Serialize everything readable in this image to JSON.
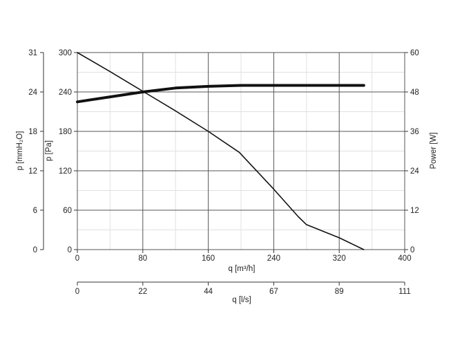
{
  "chart_data": {
    "type": "line",
    "grid": true,
    "x_axis": {
      "label": "q [m³/h]",
      "range": [
        0,
        400
      ],
      "ticks": [
        "0",
        "80",
        "160",
        "240",
        "320",
        "400"
      ]
    },
    "x_axis_secondary": {
      "label": "q [l/s]",
      "range": [
        0,
        111
      ],
      "ticks": [
        "0",
        "22",
        "44",
        "67",
        "89",
        "111"
      ]
    },
    "y_axis_left_outer": {
      "label": "p [mmH₂O]",
      "range": [
        0,
        31
      ],
      "ticks": [
        "0",
        "6",
        "12",
        "18",
        "24",
        "31"
      ]
    },
    "y_axis_left": {
      "label": "p [Pa]",
      "range": [
        0,
        300
      ],
      "ticks": [
        "0",
        "60",
        "120",
        "180",
        "240",
        "300"
      ]
    },
    "y_axis_right": {
      "label": "Power [W]",
      "range": [
        0,
        60
      ],
      "ticks": [
        "0",
        "12",
        "24",
        "36",
        "48",
        "60"
      ]
    },
    "series": [
      {
        "axis": "pressure",
        "x": [
          0,
          40,
          80,
          115,
          160,
          198,
          240,
          270,
          280,
          320,
          350
        ],
        "y": [
          300,
          271,
          241,
          215,
          180,
          148,
          92,
          50,
          38,
          18,
          0
        ]
      },
      {
        "axis": "power",
        "x": [
          0,
          40,
          80,
          120,
          160,
          200,
          240,
          300,
          350
        ],
        "y": [
          45,
          46.5,
          48,
          49.2,
          49.7,
          50,
          50,
          50,
          50
        ]
      }
    ]
  }
}
